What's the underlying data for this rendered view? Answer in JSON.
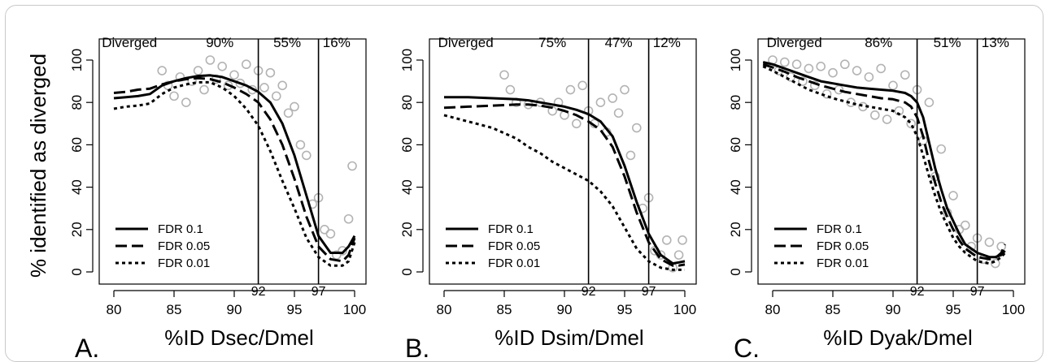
{
  "figure": {
    "ylabel": "% identified as diverged",
    "legend_labels": [
      "FDR 0.1",
      "FDR 0.05",
      "FDR 0.01"
    ],
    "region_label": "Diverged"
  },
  "chart_data": [
    {
      "type": "line",
      "panel": "A.",
      "xlabel": "%ID Dsec/Dmel",
      "ylabel": "% identified as diverged",
      "xlim": [
        80,
        100
      ],
      "ylim": [
        0,
        100
      ],
      "x_ticks": [
        80,
        85,
        90,
        95,
        100
      ],
      "y_ticks": [
        0,
        20,
        40,
        60,
        80,
        100
      ],
      "vlines": [
        92,
        97
      ],
      "region_labels": [
        {
          "text": "Diverged",
          "x": 81.3
        },
        {
          "text": "90%",
          "x": 88.8
        },
        {
          "text": "55%",
          "x": 94.4
        },
        {
          "text": "16%",
          "x": 98.5
        }
      ],
      "series": [
        {
          "name": "FDR 0.1",
          "style": "solid",
          "x": [
            80,
            81,
            82,
            83,
            84,
            85,
            86,
            87,
            88,
            89,
            90,
            91,
            92,
            93,
            94,
            95,
            96,
            97,
            98,
            99,
            99.5,
            100
          ],
          "values": [
            82,
            82.5,
            83,
            84,
            88,
            90,
            91.5,
            92.5,
            92.8,
            92,
            90,
            88,
            85,
            80,
            70,
            55,
            36,
            17,
            9,
            9,
            12,
            17
          ]
        },
        {
          "name": "FDR 0.05",
          "style": "dashed",
          "x": [
            80,
            81,
            82,
            83,
            84,
            85,
            86,
            87,
            88,
            89,
            90,
            91,
            92,
            93,
            94,
            95,
            96,
            97,
            98,
            99,
            99.5,
            100
          ],
          "values": [
            84.5,
            85,
            86,
            86.5,
            88.5,
            90,
            91,
            91.5,
            91,
            89.5,
            87,
            84,
            80,
            72,
            60,
            44,
            26,
            12,
            6,
            5,
            8,
            16
          ]
        },
        {
          "name": "FDR 0.01",
          "style": "dotted",
          "x": [
            80,
            81,
            82,
            83,
            84,
            85,
            86,
            87,
            88,
            89,
            90,
            91,
            92,
            93,
            94,
            95,
            96,
            97,
            98,
            99,
            99.5,
            100
          ],
          "values": [
            77,
            78,
            78.5,
            79.5,
            84,
            87,
            88.5,
            89.5,
            89.5,
            87,
            83,
            77,
            69,
            57,
            43,
            30,
            16,
            7,
            3,
            3,
            5,
            14
          ]
        },
        {
          "name": "data",
          "style": "points",
          "x": [
            84,
            84.5,
            85,
            85.5,
            86,
            86.5,
            87,
            87.5,
            88,
            88.5,
            89,
            89.5,
            90,
            90.5,
            91,
            91.5,
            92,
            92.5,
            93,
            93.5,
            94,
            94.5,
            95,
            95.5,
            96,
            96.5,
            97,
            97.5,
            98,
            98.5,
            99,
            99.5,
            99.8
          ],
          "values": [
            95,
            88,
            83,
            92,
            80,
            90,
            95,
            86,
            100,
            91,
            97,
            88,
            93,
            89,
            98,
            86,
            95,
            87,
            94,
            83,
            88,
            75,
            78,
            60,
            55,
            32,
            35,
            20,
            18,
            8,
            10,
            25,
            50
          ]
        }
      ]
    },
    {
      "type": "line",
      "panel": "B.",
      "xlabel": "%ID Dsim/Dmel",
      "ylabel": "% identified as diverged",
      "xlim": [
        80,
        100
      ],
      "ylim": [
        0,
        100
      ],
      "x_ticks": [
        80,
        85,
        90,
        95,
        100
      ],
      "y_ticks": [
        0,
        20,
        40,
        60,
        80,
        100
      ],
      "vlines": [
        92,
        97
      ],
      "region_labels": [
        {
          "text": "Diverged",
          "x": 81.8
        },
        {
          "text": "75%",
          "x": 89.0
        },
        {
          "text": "47%",
          "x": 94.5
        },
        {
          "text": "12%",
          "x": 98.5
        }
      ],
      "series": [
        {
          "name": "FDR 0.1",
          "style": "solid",
          "x": [
            80,
            82,
            84,
            86,
            87,
            88,
            89,
            90,
            91,
            92,
            93,
            94,
            95,
            96,
            97,
            98,
            99,
            99.5,
            100
          ],
          "values": [
            82.5,
            82.5,
            82,
            81.5,
            81,
            80,
            79,
            78,
            76.5,
            74.5,
            71,
            64,
            50,
            33,
            18,
            8,
            4,
            4.5,
            5
          ]
        },
        {
          "name": "FDR 0.05",
          "style": "dashed",
          "x": [
            80,
            82,
            84,
            86,
            87,
            88,
            89,
            90,
            91,
            92,
            93,
            94,
            95,
            96,
            97,
            98,
            99,
            99.5,
            100
          ],
          "values": [
            77.5,
            78,
            78.5,
            79,
            79,
            78.5,
            77.5,
            76,
            74,
            71,
            67,
            59,
            45,
            28,
            14,
            6,
            3,
            3,
            3.5
          ]
        },
        {
          "name": "FDR 0.01",
          "style": "dotted",
          "x": [
            80,
            82,
            84,
            86,
            87,
            88,
            89,
            90,
            91,
            92,
            93,
            94,
            95,
            96,
            97,
            98,
            99,
            99.5,
            100
          ],
          "values": [
            74,
            71,
            68,
            63,
            59,
            56,
            52,
            49,
            46,
            43,
            38,
            31,
            21,
            11,
            5,
            2,
            1,
            1,
            1
          ]
        },
        {
          "name": "data",
          "style": "points",
          "x": [
            85,
            85.5,
            86,
            87,
            88,
            89,
            89.5,
            90,
            90.5,
            91,
            91.5,
            92,
            92.5,
            93,
            93.5,
            94,
            94.5,
            95,
            95.5,
            96,
            96.5,
            97,
            97.5,
            98,
            98.5,
            99,
            99.5,
            99.8
          ],
          "values": [
            93,
            86,
            80,
            79,
            80,
            76,
            80,
            74,
            86,
            70,
            88,
            76,
            70,
            80,
            66,
            82,
            75,
            86,
            55,
            68,
            30,
            35,
            10,
            8,
            15,
            2,
            8,
            15
          ]
        }
      ]
    },
    {
      "type": "line",
      "panel": "C.",
      "xlabel": "%ID Dyak/Dmel",
      "ylabel": "% identified as diverged",
      "xlim": [
        80,
        100
      ],
      "ylim": [
        0,
        100
      ],
      "x_ticks": [
        80,
        85,
        90,
        95,
        100
      ],
      "y_ticks": [
        0,
        20,
        40,
        60,
        80,
        100
      ],
      "vlines": [
        92,
        97
      ],
      "region_labels": [
        {
          "text": "Diverged",
          "x": 81.8
        },
        {
          "text": "86%",
          "x": 88.8
        },
        {
          "text": "51%",
          "x": 94.5
        },
        {
          "text": "13%",
          "x": 98.5
        }
      ],
      "series": [
        {
          "name": "FDR 0.1",
          "style": "solid",
          "x": [
            79.2,
            80,
            81,
            82,
            83,
            84,
            85,
            86,
            87,
            88,
            89,
            90,
            91,
            91.5,
            92,
            92.5,
            93,
            93.5,
            94,
            94.5,
            95,
            95.5,
            96,
            97,
            98,
            98.5,
            99,
            99.3
          ],
          "values": [
            99,
            98,
            96,
            94,
            92,
            90,
            89,
            88,
            87,
            86.5,
            86,
            85.5,
            84.5,
            83,
            80,
            73,
            61,
            49,
            39,
            30,
            24,
            18,
            13,
            9,
            7,
            7,
            8,
            10
          ]
        },
        {
          "name": "FDR 0.05",
          "style": "dashed",
          "x": [
            79.2,
            80,
            81,
            82,
            83,
            84,
            85,
            86,
            87,
            88,
            89,
            90,
            91,
            91.5,
            92,
            92.5,
            93,
            93.5,
            94,
            94.5,
            95,
            95.5,
            96,
            97,
            98,
            98.5,
            99,
            99.3
          ],
          "values": [
            98,
            96.5,
            94.5,
            92,
            90,
            88,
            86.5,
            85,
            84,
            83,
            82,
            81.5,
            80,
            78,
            73,
            64,
            52,
            42,
            33,
            26,
            20,
            15,
            11,
            7,
            6,
            6.5,
            9,
            13
          ]
        },
        {
          "name": "FDR 0.01",
          "style": "dotted",
          "x": [
            79.2,
            80,
            81,
            82,
            83,
            84,
            85,
            86,
            87,
            88,
            89,
            90,
            91,
            91.5,
            92,
            92.5,
            93,
            93.5,
            94,
            94.5,
            95,
            95.5,
            96,
            97,
            98,
            98.5,
            99,
            99.3
          ],
          "values": [
            97,
            95,
            92,
            89,
            86,
            84,
            82,
            80.5,
            79,
            78,
            77,
            76,
            73,
            70,
            64,
            55,
            45,
            36,
            28,
            22,
            16,
            12,
            9,
            5,
            4,
            5,
            7,
            9
          ]
        },
        {
          "name": "data",
          "style": "points",
          "x": [
            80,
            80.5,
            81,
            81.5,
            82,
            82.5,
            83,
            83.5,
            84,
            84.5,
            85,
            85.5,
            86,
            86.5,
            87,
            87.5,
            88,
            88.5,
            89,
            89.5,
            90,
            90.5,
            91,
            91.5,
            92,
            92.5,
            93,
            93.5,
            94,
            94.5,
            95,
            95.5,
            96,
            96.5,
            97,
            97.5,
            98,
            98.5,
            99
          ],
          "values": [
            100,
            95,
            99,
            92,
            98,
            90,
            96,
            88,
            97,
            84,
            94,
            86,
            98,
            80,
            95,
            78,
            92,
            74,
            96,
            72,
            88,
            76,
            93,
            70,
            86,
            62,
            80,
            45,
            58,
            28,
            36,
            20,
            22,
            12,
            16,
            6,
            14,
            4,
            12
          ]
        }
      ]
    }
  ]
}
